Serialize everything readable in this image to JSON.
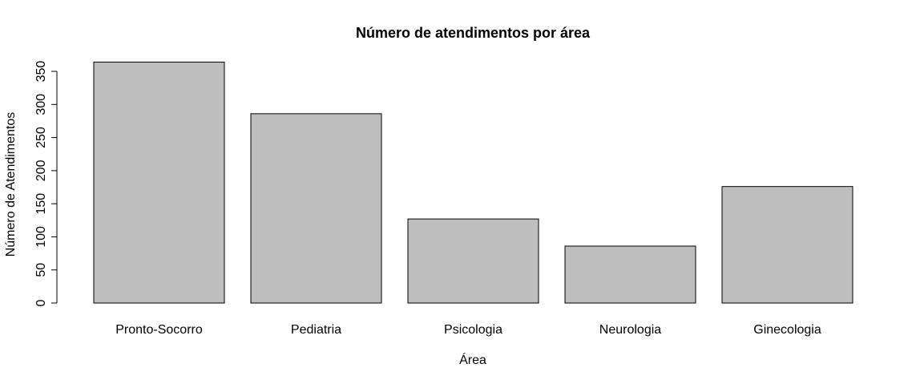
{
  "chart_data": {
    "type": "bar",
    "title": "Número de atendimentos por área",
    "xlabel": "Área",
    "ylabel": "Número de Atendimentos",
    "categories": [
      "Pronto-Socorro",
      "Pediatria",
      "Psicologia",
      "Neurologia",
      "Ginecologia"
    ],
    "values": [
      364,
      286,
      127,
      86,
      176
    ],
    "ylim": [
      0,
      350
    ],
    "yticks": [
      "0",
      "50",
      "100",
      "150",
      "200",
      "250",
      "300",
      "350"
    ],
    "bar_color": "#bebebe",
    "grid": false
  }
}
